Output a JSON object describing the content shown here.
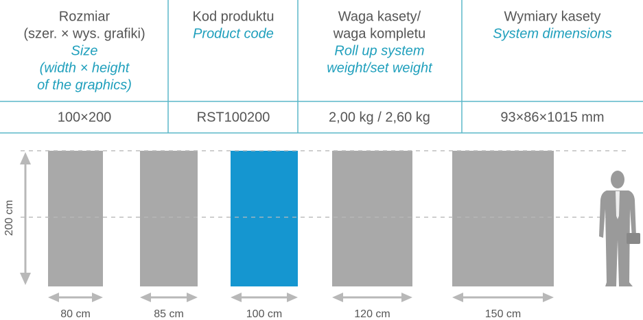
{
  "table": {
    "headers": [
      {
        "lines": [
          "Rozmiar",
          "(szer. × wys. grafiki)"
        ],
        "lines_en": [
          "Size",
          "(width × height",
          "of the graphics)"
        ]
      },
      {
        "lines": [
          "Kod produktu"
        ],
        "lines_en": [
          "Product code"
        ]
      },
      {
        "lines": [
          "Waga kasety/",
          "waga kompletu"
        ],
        "lines_en": [
          "Roll up system",
          "weight/set weight"
        ]
      },
      {
        "lines": [
          "Wymiary kasety"
        ],
        "lines_en": [
          "System dimensions"
        ]
      }
    ],
    "rows": [
      [
        "100×200",
        "RST100200",
        "2,00 kg / 2,60 kg",
        "93×86×1015 mm"
      ]
    ]
  },
  "diagram": {
    "height_label": "200 cm",
    "panels": [
      {
        "label": "80 cm"
      },
      {
        "label": "85 cm"
      },
      {
        "label": "100 cm"
      },
      {
        "label": "120 cm"
      },
      {
        "label": "150 cm"
      }
    ]
  }
}
